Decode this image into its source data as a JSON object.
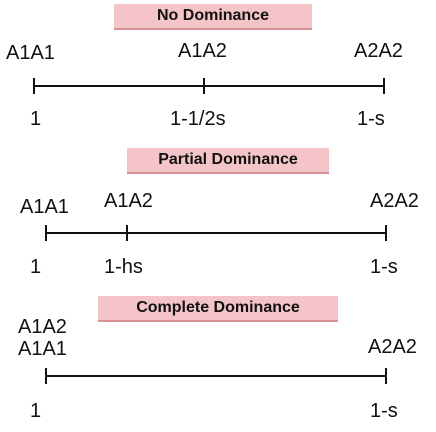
{
  "panels": [
    {
      "title": "No Dominance",
      "genotypes": {
        "left": "A1A1",
        "middle": "A1A2",
        "right": "A2A2"
      },
      "fitness": {
        "left": "1",
        "middle": "1-1/2s",
        "right": "1-s"
      }
    },
    {
      "title": "Partial Dominance",
      "genotypes": {
        "left": "A1A1",
        "middle": "A1A2",
        "right": "A2A2"
      },
      "fitness": {
        "left": "1",
        "middle": "1-hs",
        "right": "1-s"
      }
    },
    {
      "title": "Complete Dominance",
      "genotypes": {
        "left_top": "A1A2",
        "left": "A1A1",
        "right": "A2A2"
      },
      "fitness": {
        "left": "1",
        "right": "1-s"
      }
    }
  ]
}
